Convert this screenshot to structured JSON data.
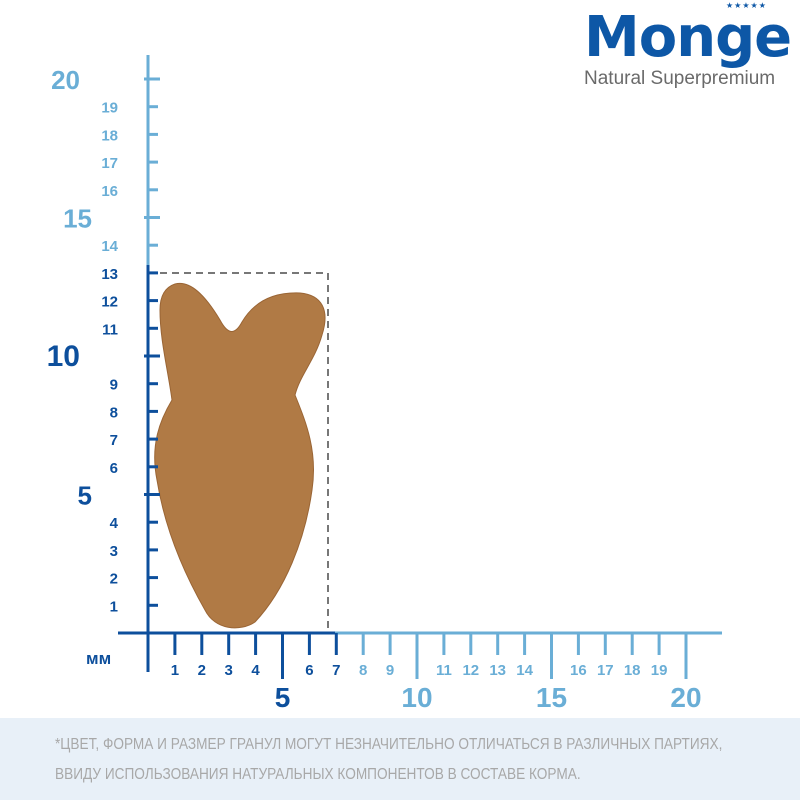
{
  "brand": {
    "name": "Monge",
    "tagline": "Natural Superpremium"
  },
  "ruler": {
    "unit": "мм",
    "x_minor_labels": [
      "1",
      "2",
      "3",
      "4",
      "6",
      "7",
      "8",
      "9",
      "11",
      "12",
      "13",
      "14",
      "16",
      "17",
      "18",
      "19"
    ],
    "x_major_labels": [
      "5",
      "10",
      "15",
      "20"
    ],
    "y_minor_labels": [
      "1",
      "2",
      "3",
      "4",
      "6",
      "7",
      "8",
      "9",
      "11",
      "12",
      "13",
      "14",
      "16",
      "17",
      "18",
      "19"
    ],
    "y_major_labels": [
      "5",
      "10",
      "15",
      "20"
    ],
    "kibble_size_mm": {
      "width": 7,
      "height": 13
    },
    "colors": {
      "dark": "#0d4f9c",
      "light": "#6aaed6",
      "kibble": "#b07a45",
      "dashed_box": "#777777"
    }
  },
  "disclaimer": {
    "line1": "*ЦВЕТ, ФОРМА И РАЗМЕР ГРАНУЛ МОГУТ НЕЗНАЧИТЕЛЬНО ОТЛИЧАТЬСЯ В РАЗЛИЧНЫХ ПАРТИЯХ,",
    "line2": "ВВИДУ ИСПОЛЬЗОВАНИЯ НАТУРАЛЬНЫХ КОМПОНЕНТОВ В СОСТАВЕ КОРМА."
  }
}
